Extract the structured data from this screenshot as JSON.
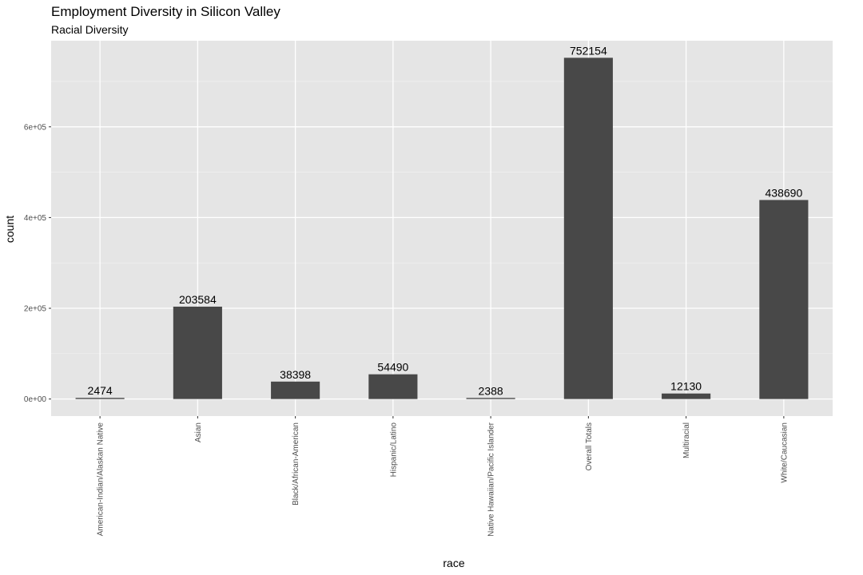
{
  "chart_data": {
    "type": "bar",
    "title": "Employment Diversity in Silicon Valley",
    "subtitle": "Racial Diversity",
    "xlabel": "race",
    "ylabel": "count",
    "categories": [
      "American-Indian/Alaskan Native",
      "Asian",
      "Black/African-American",
      "Hispanic/Latino",
      "Native Hawaiian/Pacific Islander",
      "Overall Totals",
      "Multiracial",
      "White/Caucasian"
    ],
    "values": [
      2474,
      203584,
      38398,
      54490,
      2388,
      752154,
      12130,
      438690
    ],
    "data_labels": [
      "2474",
      "203584",
      "38398",
      "54490",
      "2388",
      "752154",
      "12130",
      "438690"
    ],
    "yticks": [
      0,
      200000,
      400000,
      600000
    ],
    "ytick_labels": [
      "0e+00",
      "2e+05",
      "4e+05",
      "6e+05"
    ],
    "ylim": [
      -37608,
      789762
    ],
    "grid": true,
    "colors": {
      "bar": "#484848",
      "panel": "#e5e5e5",
      "grid_major": "#ffffff",
      "grid_minor": "#f1f1f1",
      "tick_label": "#4d4d4d"
    }
  }
}
